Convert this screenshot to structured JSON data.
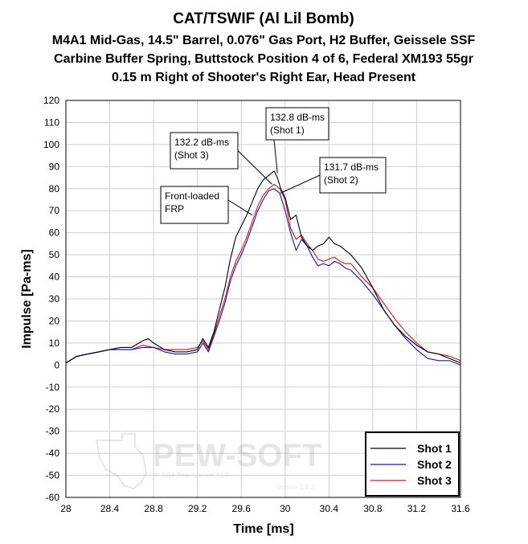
{
  "chart_data": {
    "type": "line",
    "title": "CAT/TSWIF (Al Lil Bomb)",
    "subtitle": [
      "M4A1 Mid-Gas, 14.5\" Barrel, 0.076\" Gas Port, H2 Buffer, Geissele SSF",
      "Carbine Buffer Spring, Buttstock Position 4 of 6, Federal XM193 55gr",
      "0.15 m Right of Shooter's Right Ear, Head Present"
    ],
    "xlabel": "Time [ms]",
    "ylabel": "Impulse [Pa-ms]",
    "xlim": [
      28,
      31.6
    ],
    "ylim": [
      -60,
      120
    ],
    "x_ticks": [
      "28",
      "28.4",
      "28.8",
      "29.2",
      "29.6",
      "30",
      "30.4",
      "30.8",
      "31.2",
      "31.6"
    ],
    "y_ticks": [
      "120",
      "110",
      "100",
      "90",
      "80",
      "70",
      "60",
      "50",
      "40",
      "30",
      "20",
      "10",
      "0",
      "-10",
      "-20",
      "-30",
      "-40",
      "-50",
      "-60"
    ],
    "grid": true,
    "legend_position": "bottom-right",
    "series": [
      {
        "name": "Shot 1",
        "color": "#000000",
        "x": [
          28.0,
          28.1,
          28.2,
          28.3,
          28.4,
          28.5,
          28.6,
          28.7,
          28.75,
          28.8,
          28.9,
          29.0,
          29.1,
          29.2,
          29.25,
          29.3,
          29.35,
          29.4,
          29.45,
          29.5,
          29.55,
          29.6,
          29.65,
          29.7,
          29.75,
          29.8,
          29.85,
          29.9,
          29.93,
          29.96,
          30.0,
          30.05,
          30.1,
          30.15,
          30.2,
          30.25,
          30.3,
          30.35,
          30.4,
          30.45,
          30.5,
          30.55,
          30.6,
          30.7,
          30.8,
          30.9,
          31.0,
          31.1,
          31.2,
          31.3,
          31.4,
          31.5,
          31.6
        ],
        "y": [
          1,
          4,
          5,
          6,
          7,
          8,
          8,
          11,
          12,
          10,
          7,
          6,
          6,
          7,
          12,
          8,
          15,
          25,
          35,
          48,
          58,
          63,
          68,
          74,
          80,
          84,
          86,
          88,
          85,
          80,
          76,
          66,
          68,
          58,
          54,
          52,
          54,
          55,
          58,
          55,
          54,
          52,
          50,
          44,
          35,
          25,
          18,
          13,
          9,
          6,
          5,
          3,
          1
        ]
      },
      {
        "name": "Shot 2",
        "color": "#1111cc",
        "x": [
          28.0,
          28.1,
          28.2,
          28.3,
          28.4,
          28.5,
          28.6,
          28.7,
          28.8,
          28.9,
          29.0,
          29.1,
          29.2,
          29.25,
          29.3,
          29.35,
          29.4,
          29.45,
          29.5,
          29.55,
          29.6,
          29.65,
          29.7,
          29.75,
          29.8,
          29.85,
          29.9,
          29.95,
          30.0,
          30.05,
          30.1,
          30.15,
          30.2,
          30.25,
          30.3,
          30.35,
          30.4,
          30.45,
          30.5,
          30.55,
          30.6,
          30.7,
          30.8,
          30.9,
          31.0,
          31.1,
          31.2,
          31.3,
          31.4,
          31.5,
          31.6
        ],
        "y": [
          1,
          4,
          5,
          6,
          7,
          7,
          7,
          8,
          8,
          6,
          5,
          5,
          6,
          10,
          6,
          13,
          20,
          28,
          38,
          45,
          50,
          56,
          63,
          70,
          75,
          79,
          80,
          78,
          70,
          60,
          52,
          57,
          54,
          49,
          45,
          46,
          45,
          47,
          46,
          44,
          43,
          38,
          32,
          25,
          18,
          12,
          7,
          3,
          2,
          2,
          0
        ]
      },
      {
        "name": "Shot 3",
        "color": "#dd1111",
        "x": [
          28.0,
          28.1,
          28.2,
          28.3,
          28.4,
          28.5,
          28.6,
          28.7,
          28.8,
          28.9,
          29.0,
          29.1,
          29.2,
          29.25,
          29.3,
          29.35,
          29.4,
          29.45,
          29.5,
          29.55,
          29.6,
          29.65,
          29.7,
          29.75,
          29.8,
          29.85,
          29.9,
          29.95,
          30.0,
          30.05,
          30.1,
          30.15,
          30.2,
          30.25,
          30.3,
          30.35,
          30.4,
          30.45,
          30.5,
          30.55,
          30.6,
          30.7,
          30.8,
          30.9,
          31.0,
          31.1,
          31.2,
          31.3,
          31.4,
          31.5,
          31.6
        ],
        "y": [
          1,
          4,
          5,
          6,
          7,
          7,
          7,
          9,
          8,
          7,
          7,
          7,
          8,
          11,
          7,
          14,
          22,
          30,
          40,
          47,
          52,
          58,
          65,
          72,
          77,
          80,
          82,
          80,
          75,
          62,
          57,
          59,
          55,
          52,
          48,
          47,
          48,
          49,
          47,
          46,
          46,
          40,
          35,
          28,
          21,
          15,
          10,
          6,
          5,
          4,
          2
        ]
      }
    ],
    "annotations": [
      {
        "lines": [
          "132.8 dB-ms",
          "(Shot 1)"
        ],
        "target_x": 29.93,
        "target_y": 87
      },
      {
        "lines": [
          "132.2 dB-ms",
          "(Shot 3)"
        ],
        "target_x": 29.88,
        "target_y": 82
      },
      {
        "lines": [
          "131.7 dB-ms",
          "(Shot 2)"
        ],
        "target_x": 29.96,
        "target_y": 78
      },
      {
        "lines": [
          "Front-loaded",
          "FRP"
        ],
        "target_x": 29.7,
        "target_y": 68
      }
    ]
  },
  "watermark": {
    "brand": "PEW-SOFT",
    "trademark": "TM",
    "copyright": "© 2016 Pew Science, LLC",
    "version": "Version 1.0.2"
  }
}
